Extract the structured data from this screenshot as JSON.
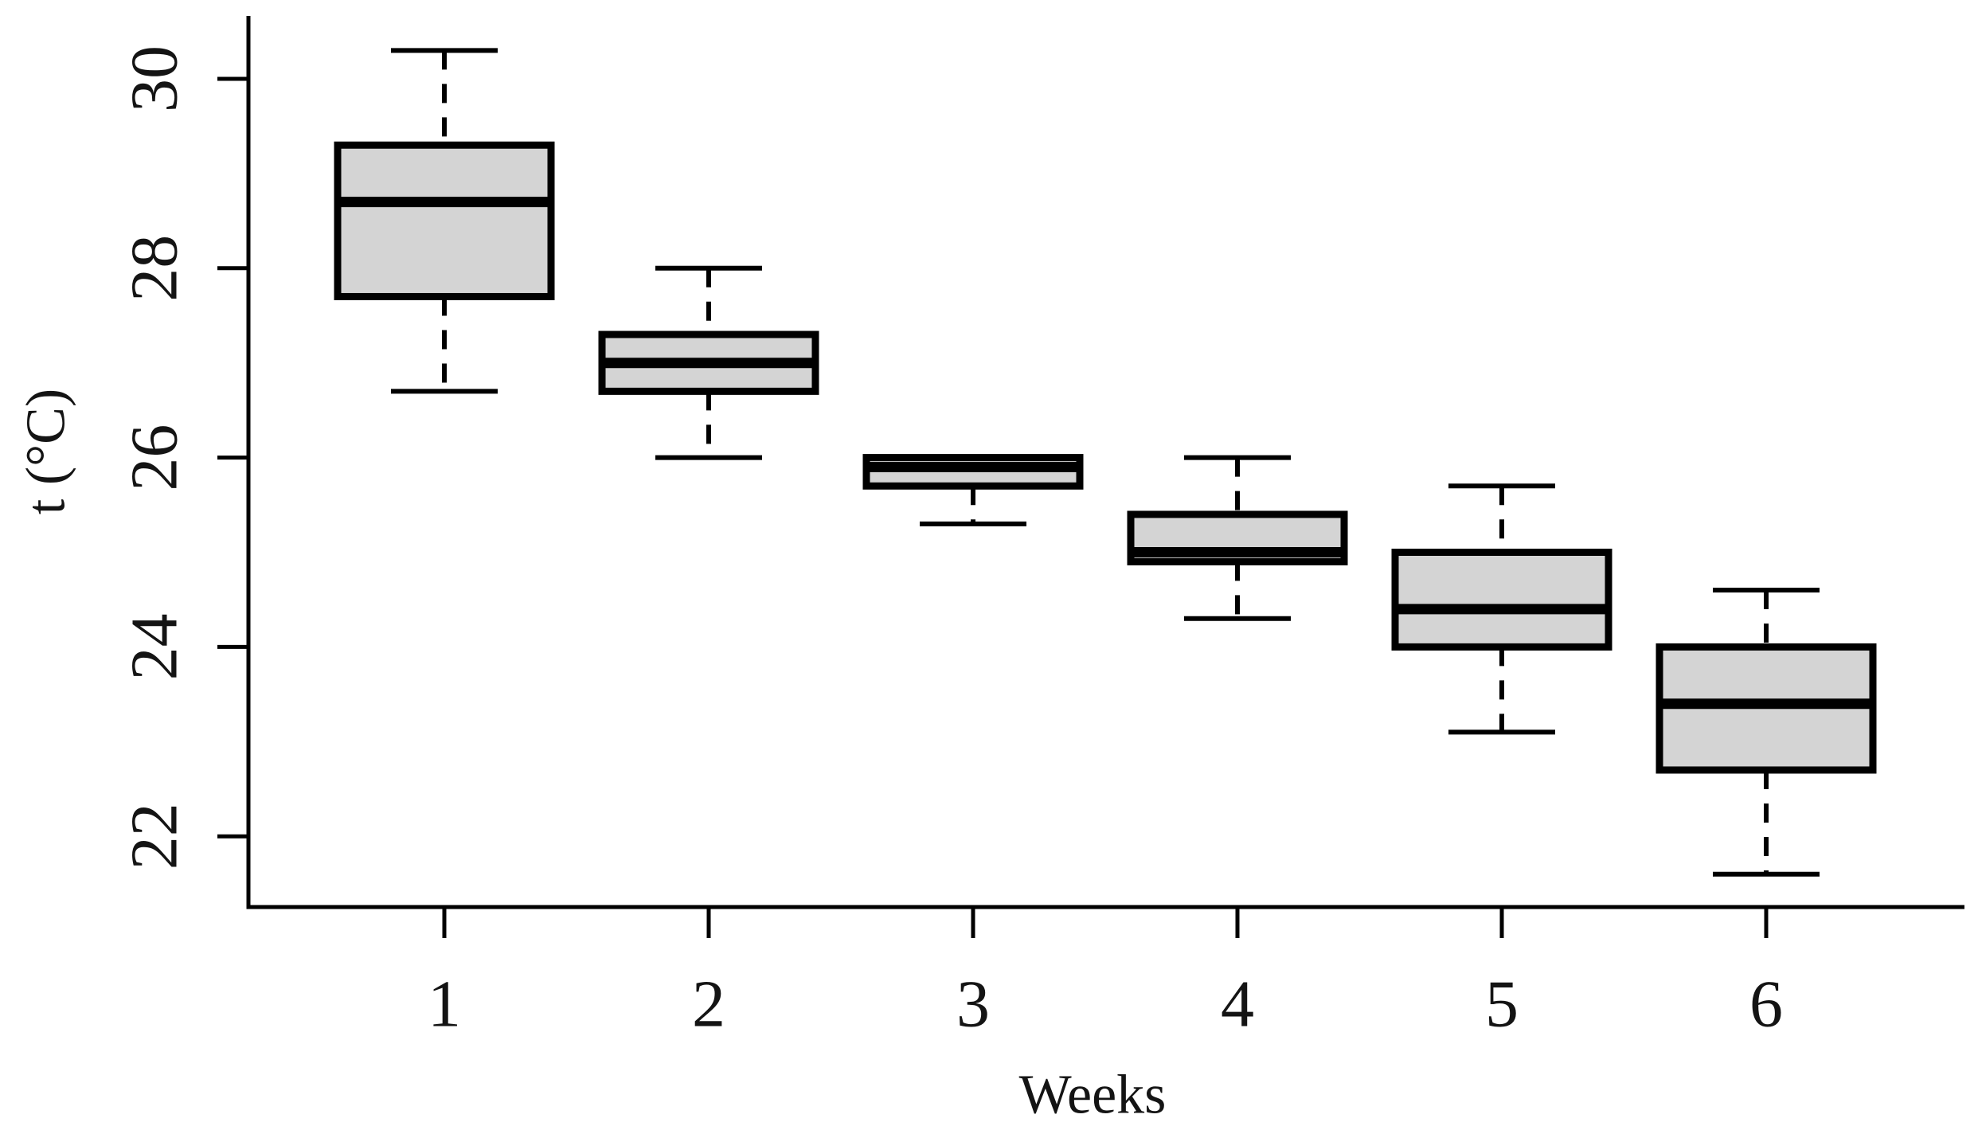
{
  "chart_data": {
    "type": "box",
    "title": "",
    "xlabel": "Weeks",
    "ylabel": "t (°C)",
    "categories": [
      "1",
      "2",
      "3",
      "4",
      "5",
      "6"
    ],
    "x_tick_labels": [
      "1",
      "2",
      "3",
      "4",
      "5",
      "6"
    ],
    "y_tick_labels": [
      "22",
      "24",
      "26",
      "28",
      "30"
    ],
    "yticks": [
      22,
      24,
      26,
      28,
      30
    ],
    "ylim": [
      21.25,
      30.65
    ],
    "grid": false,
    "legend": "none",
    "series": [
      {
        "name": "Week 1",
        "min": 26.7,
        "q1": 27.7,
        "median": 28.7,
        "q3": 29.3,
        "max": 30.3
      },
      {
        "name": "Week 2",
        "min": 26.0,
        "q1": 26.7,
        "median": 27.0,
        "q3": 27.3,
        "max": 28.0
      },
      {
        "name": "Week 3",
        "min": 25.3,
        "q1": 25.7,
        "median": 25.9,
        "q3": 26.0,
        "max": 26.0
      },
      {
        "name": "Week 4",
        "min": 24.3,
        "q1": 24.9,
        "median": 25.0,
        "q3": 25.4,
        "max": 26.0
      },
      {
        "name": "Week 5",
        "min": 23.1,
        "q1": 24.0,
        "median": 24.4,
        "q3": 25.0,
        "max": 25.7
      },
      {
        "name": "Week 6",
        "min": 21.6,
        "q1": 22.7,
        "median": 23.4,
        "q3": 24.0,
        "max": 24.6
      }
    ],
    "colors": {
      "box_fill": "#d4d4d4",
      "box_border": "#000000",
      "whisker": "#000000",
      "median": "#000000",
      "axis": "#000000",
      "text": "#141414",
      "background": "#ffffff"
    }
  }
}
